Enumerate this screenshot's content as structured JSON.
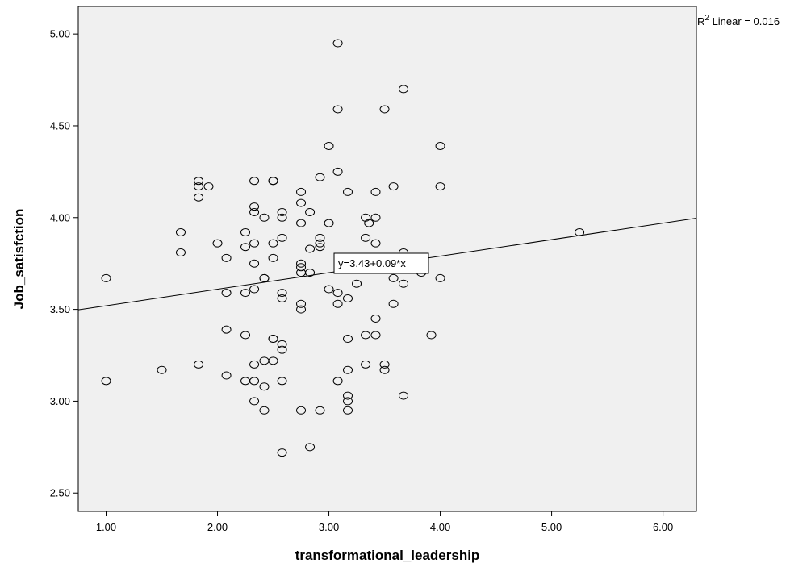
{
  "chart_data": {
    "type": "scatter",
    "title": "",
    "xlabel": "transformational_leadership",
    "ylabel": "Job_satisfction",
    "xlim": [
      0.75,
      6.3
    ],
    "ylim": [
      2.4,
      5.15
    ],
    "x_ticks": [
      "1.00",
      "2.00",
      "3.00",
      "4.00",
      "5.00",
      "6.00"
    ],
    "y_ticks": [
      "2.50",
      "3.00",
      "3.50",
      "4.00",
      "4.50",
      "5.00"
    ],
    "x_tick_values": [
      1,
      2,
      3,
      4,
      5,
      6
    ],
    "y_tick_values": [
      2.5,
      3,
      3.5,
      4,
      4.5,
      5
    ],
    "grid": false,
    "background_color": "#f0f0f0",
    "marker": "open-circle",
    "fit_line": {
      "intercept": 3.43,
      "slope": 0.09,
      "equation_label": "y=3.43+0.09*x",
      "r2_prefix": "R",
      "r2_superscript": "2",
      "r2_suffix": " Linear = 0.016"
    },
    "points": [
      {
        "x": 1.0,
        "y": 3.67
      },
      {
        "x": 1.0,
        "y": 3.11
      },
      {
        "x": 1.5,
        "y": 3.17
      },
      {
        "x": 1.67,
        "y": 3.92
      },
      {
        "x": 1.67,
        "y": 3.81
      },
      {
        "x": 1.83,
        "y": 4.2
      },
      {
        "x": 1.83,
        "y": 4.17
      },
      {
        "x": 1.83,
        "y": 4.11
      },
      {
        "x": 1.83,
        "y": 3.2
      },
      {
        "x": 1.92,
        "y": 4.17
      },
      {
        "x": 2.0,
        "y": 3.86
      },
      {
        "x": 2.08,
        "y": 3.78
      },
      {
        "x": 2.08,
        "y": 3.59
      },
      {
        "x": 2.08,
        "y": 3.39
      },
      {
        "x": 2.08,
        "y": 3.14
      },
      {
        "x": 2.25,
        "y": 3.92
      },
      {
        "x": 2.25,
        "y": 3.84
      },
      {
        "x": 2.25,
        "y": 3.59
      },
      {
        "x": 2.25,
        "y": 3.36
      },
      {
        "x": 2.25,
        "y": 3.11
      },
      {
        "x": 2.33,
        "y": 4.2
      },
      {
        "x": 2.33,
        "y": 4.06
      },
      {
        "x": 2.33,
        "y": 4.03
      },
      {
        "x": 2.33,
        "y": 3.86
      },
      {
        "x": 2.33,
        "y": 3.75
      },
      {
        "x": 2.33,
        "y": 3.61
      },
      {
        "x": 2.33,
        "y": 3.2
      },
      {
        "x": 2.33,
        "y": 3.11
      },
      {
        "x": 2.33,
        "y": 3.0
      },
      {
        "x": 2.42,
        "y": 4.0
      },
      {
        "x": 2.42,
        "y": 3.67
      },
      {
        "x": 2.42,
        "y": 3.67
      },
      {
        "x": 2.42,
        "y": 3.22
      },
      {
        "x": 2.42,
        "y": 3.08
      },
      {
        "x": 2.42,
        "y": 2.95
      },
      {
        "x": 2.5,
        "y": 4.2
      },
      {
        "x": 2.5,
        "y": 4.2
      },
      {
        "x": 2.5,
        "y": 3.86
      },
      {
        "x": 2.5,
        "y": 3.78
      },
      {
        "x": 2.5,
        "y": 3.34
      },
      {
        "x": 2.5,
        "y": 3.34
      },
      {
        "x": 2.5,
        "y": 3.22
      },
      {
        "x": 2.58,
        "y": 4.03
      },
      {
        "x": 2.58,
        "y": 4.0
      },
      {
        "x": 2.58,
        "y": 3.89
      },
      {
        "x": 2.58,
        "y": 3.59
      },
      {
        "x": 2.58,
        "y": 3.56
      },
      {
        "x": 2.58,
        "y": 3.31
      },
      {
        "x": 2.58,
        "y": 3.28
      },
      {
        "x": 2.58,
        "y": 3.11
      },
      {
        "x": 2.58,
        "y": 2.72
      },
      {
        "x": 2.75,
        "y": 4.14
      },
      {
        "x": 2.75,
        "y": 4.08
      },
      {
        "x": 2.75,
        "y": 3.97
      },
      {
        "x": 2.75,
        "y": 3.75
      },
      {
        "x": 2.75,
        "y": 3.73
      },
      {
        "x": 2.75,
        "y": 3.7
      },
      {
        "x": 2.75,
        "y": 3.53
      },
      {
        "x": 2.75,
        "y": 3.5
      },
      {
        "x": 2.75,
        "y": 2.95
      },
      {
        "x": 2.83,
        "y": 4.03
      },
      {
        "x": 2.83,
        "y": 3.83
      },
      {
        "x": 2.83,
        "y": 3.7
      },
      {
        "x": 2.83,
        "y": 2.75
      },
      {
        "x": 2.92,
        "y": 4.22
      },
      {
        "x": 2.92,
        "y": 3.89
      },
      {
        "x": 2.92,
        "y": 3.86
      },
      {
        "x": 2.92,
        "y": 3.84
      },
      {
        "x": 2.92,
        "y": 2.95
      },
      {
        "x": 3.0,
        "y": 4.39
      },
      {
        "x": 3.0,
        "y": 3.97
      },
      {
        "x": 3.0,
        "y": 3.61
      },
      {
        "x": 3.08,
        "y": 4.95
      },
      {
        "x": 3.08,
        "y": 4.59
      },
      {
        "x": 3.08,
        "y": 4.25
      },
      {
        "x": 3.08,
        "y": 3.59
      },
      {
        "x": 3.08,
        "y": 3.53
      },
      {
        "x": 3.08,
        "y": 3.11
      },
      {
        "x": 3.17,
        "y": 4.14
      },
      {
        "x": 3.17,
        "y": 3.56
      },
      {
        "x": 3.17,
        "y": 3.34
      },
      {
        "x": 3.17,
        "y": 3.17
      },
      {
        "x": 3.17,
        "y": 3.03
      },
      {
        "x": 3.17,
        "y": 3.0
      },
      {
        "x": 3.17,
        "y": 2.95
      },
      {
        "x": 3.25,
        "y": 3.64
      },
      {
        "x": 3.33,
        "y": 4.0
      },
      {
        "x": 3.33,
        "y": 3.89
      },
      {
        "x": 3.33,
        "y": 3.36
      },
      {
        "x": 3.33,
        "y": 3.2
      },
      {
        "x": 3.36,
        "y": 3.97
      },
      {
        "x": 3.42,
        "y": 4.14
      },
      {
        "x": 3.42,
        "y": 4.0
      },
      {
        "x": 3.42,
        "y": 3.86
      },
      {
        "x": 3.42,
        "y": 3.45
      },
      {
        "x": 3.42,
        "y": 3.36
      },
      {
        "x": 3.5,
        "y": 4.59
      },
      {
        "x": 3.5,
        "y": 3.2
      },
      {
        "x": 3.5,
        "y": 3.17
      },
      {
        "x": 3.58,
        "y": 4.17
      },
      {
        "x": 3.58,
        "y": 3.67
      },
      {
        "x": 3.58,
        "y": 3.53
      },
      {
        "x": 3.67,
        "y": 4.7
      },
      {
        "x": 3.67,
        "y": 3.81
      },
      {
        "x": 3.67,
        "y": 3.64
      },
      {
        "x": 3.67,
        "y": 3.03
      },
      {
        "x": 3.83,
        "y": 3.7
      },
      {
        "x": 3.92,
        "y": 3.36
      },
      {
        "x": 4.0,
        "y": 4.39
      },
      {
        "x": 4.0,
        "y": 4.17
      },
      {
        "x": 4.0,
        "y": 3.67
      },
      {
        "x": 5.25,
        "y": 3.92
      }
    ]
  }
}
